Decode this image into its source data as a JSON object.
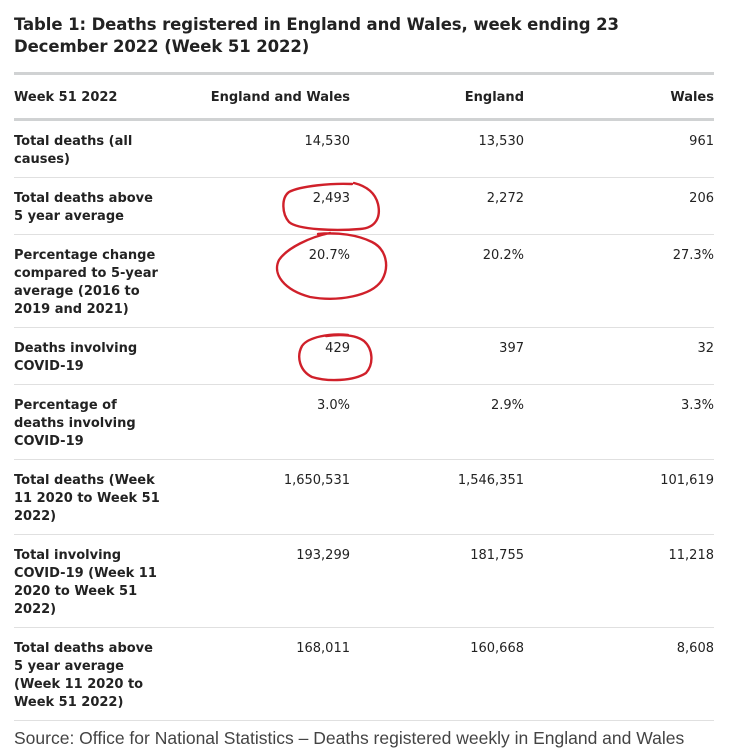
{
  "table": {
    "title": "Table 1: Deaths registered in England and Wales, week ending 23 December 2022 (Week 51 2022)",
    "headers": [
      "Week 51 2022",
      "England and Wales",
      "England",
      "Wales"
    ],
    "rows": [
      {
        "label": "Total deaths (all causes)",
        "values": [
          "14,530",
          "13,530",
          "961"
        ]
      },
      {
        "label": "Total deaths above 5 year average",
        "values": [
          "2,493",
          "2,272",
          "206"
        ]
      },
      {
        "label": "Percentage change compared to 5-year average (2016 to 2019 and 2021)",
        "values": [
          "20.7%",
          "20.2%",
          "27.3%"
        ]
      },
      {
        "label": "Deaths involving COVID-19",
        "values": [
          "429",
          "397",
          "32"
        ]
      },
      {
        "label": "Percentage of deaths involving COVID-19",
        "values": [
          "3.0%",
          "2.9%",
          "3.3%"
        ]
      },
      {
        "label": "Total deaths (Week 11 2020 to Week 51 2022)",
        "values": [
          "1,650,531",
          "1,546,351",
          "101,619"
        ]
      },
      {
        "label": "Total involving COVID-19 (Week 11 2020 to Week 51 2022)",
        "values": [
          "193,299",
          "181,755",
          "11,218"
        ]
      },
      {
        "label": "Total deaths above 5 year average (Week 11 2020 to Week 51 2022)",
        "values": [
          "168,011",
          "160,668",
          "8,608"
        ]
      }
    ],
    "source": "Source: Office for National Statistics – Deaths registered weekly in England and Wales"
  },
  "annotations": {
    "color": "#d0202a",
    "circled_cells": [
      "2,493",
      "20.7%",
      "429"
    ]
  }
}
